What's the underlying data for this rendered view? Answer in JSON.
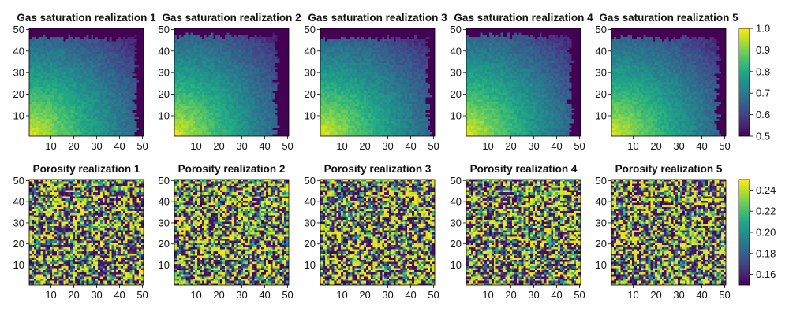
{
  "chart_data": [
    {
      "type": "heatmap",
      "row": "gas_saturation",
      "colormap": "viridis",
      "colorbar": {
        "range": [
          0.5,
          1.0
        ],
        "ticks": [
          "0.5",
          "0.6",
          "0.7",
          "0.8",
          "0.9",
          "1.0"
        ],
        "tick_values": [
          0.5,
          0.6,
          0.7,
          0.8,
          0.9,
          1.0
        ]
      },
      "x_range": [
        1,
        50
      ],
      "y_range": [
        1,
        50
      ],
      "x_ticks": [
        "10",
        "20",
        "30",
        "40",
        "50"
      ],
      "x_tick_values": [
        10,
        20,
        30,
        40,
        50
      ],
      "y_ticks": [
        "10",
        "20",
        "30",
        "40",
        "50"
      ],
      "y_tick_values": [
        10,
        20,
        30,
        40,
        50
      ],
      "grid_size": [
        50,
        50
      ],
      "field_description_values": {
        "max_near_origin": 1.0,
        "min_background": 0.5,
        "plume_front_x": 47,
        "plume_front_y": 47
      },
      "panels": [
        {
          "title": "Gas saturation realization 1",
          "front_x": 47,
          "front_y": 46
        },
        {
          "title": "Gas saturation realization 2",
          "front_x": 45,
          "front_y": 47
        },
        {
          "title": "Gas saturation realization 3",
          "front_x": 48,
          "front_y": 46
        },
        {
          "title": "Gas saturation realization 4",
          "front_x": 46,
          "front_y": 47
        },
        {
          "title": "Gas saturation realization 5",
          "front_x": 47,
          "front_y": 46
        }
      ]
    },
    {
      "type": "heatmap",
      "row": "porosity",
      "colormap": "viridis",
      "colorbar": {
        "range": [
          0.15,
          0.25
        ],
        "ticks": [
          "0.16",
          "0.18",
          "0.20",
          "0.22",
          "0.24"
        ],
        "tick_values": [
          0.16,
          0.18,
          0.2,
          0.22,
          0.24
        ]
      },
      "x_range": [
        1,
        50
      ],
      "y_range": [
        1,
        50
      ],
      "x_ticks": [
        "10",
        "20",
        "30",
        "40",
        "50"
      ],
      "x_tick_values": [
        10,
        20,
        30,
        40,
        50
      ],
      "y_ticks": [
        "10",
        "20",
        "30",
        "40",
        "50"
      ],
      "y_tick_values": [
        10,
        20,
        30,
        40,
        50
      ],
      "grid_size": [
        50,
        50
      ],
      "distribution": "random binary-like",
      "panels": [
        {
          "title": "Porosity realization 1"
        },
        {
          "title": "Porosity realization 2"
        },
        {
          "title": "Porosity realization 3"
        },
        {
          "title": "Porosity realization 4"
        },
        {
          "title": "Porosity realization 5"
        }
      ]
    }
  ]
}
